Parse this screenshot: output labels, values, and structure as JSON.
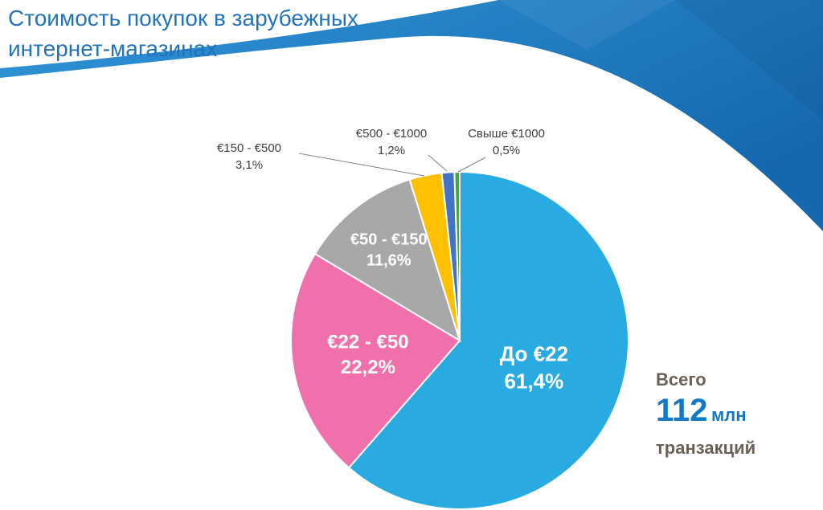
{
  "title": {
    "line1": "Стоимость покупок в зарубежных",
    "line2": "интернет-магазинах"
  },
  "chart_data": {
    "type": "pie",
    "title": "Стоимость покупок в зарубежных интернет-магазинах",
    "start_angle_deg": 0,
    "direction": "clockwise",
    "legend_position": "none",
    "annotation": "Всего 112 млн транзакций",
    "slices": [
      {
        "label": "До €22",
        "pct": "61,4%",
        "value": 61.4,
        "color": "#29ABE2",
        "inside": true,
        "rf": 0.47,
        "fs": 26
      },
      {
        "label": "€22 - €50",
        "pct": "22,2%",
        "value": 22.2,
        "color": "#F070AC",
        "inside": true,
        "rf": 0.55,
        "fs": 24
      },
      {
        "label": "€50 - €150",
        "pct": "11,6%",
        "value": 11.6,
        "color": "#A8A8A8",
        "inside": true,
        "rf": 0.68,
        "fs": 20
      },
      {
        "label": "€150 - €500",
        "pct": "3,1%",
        "value": 3.1,
        "color": "#FFC000",
        "inside": false
      },
      {
        "label": "€500 - €1000",
        "pct": "1,2%",
        "value": 1.2,
        "color": "#4472C4",
        "inside": false
      },
      {
        "label": "Свыше €1000",
        "pct": "0,5%",
        "value": 0.5,
        "color": "#46A546",
        "inside": false
      }
    ]
  },
  "summary": {
    "caption": "Всего",
    "number": "112",
    "number_unit": "млн",
    "caption2": "транзакций"
  },
  "theme": {
    "title_color": "#2273BC",
    "band_blue_light": "#3096D8",
    "band_blue_dark": "#1668AE",
    "outside_label_color": "#3F3F3F",
    "summary_text_color": "#6A6157",
    "summary_number_color": "#1179C8",
    "leader_line_color": "#808080"
  }
}
